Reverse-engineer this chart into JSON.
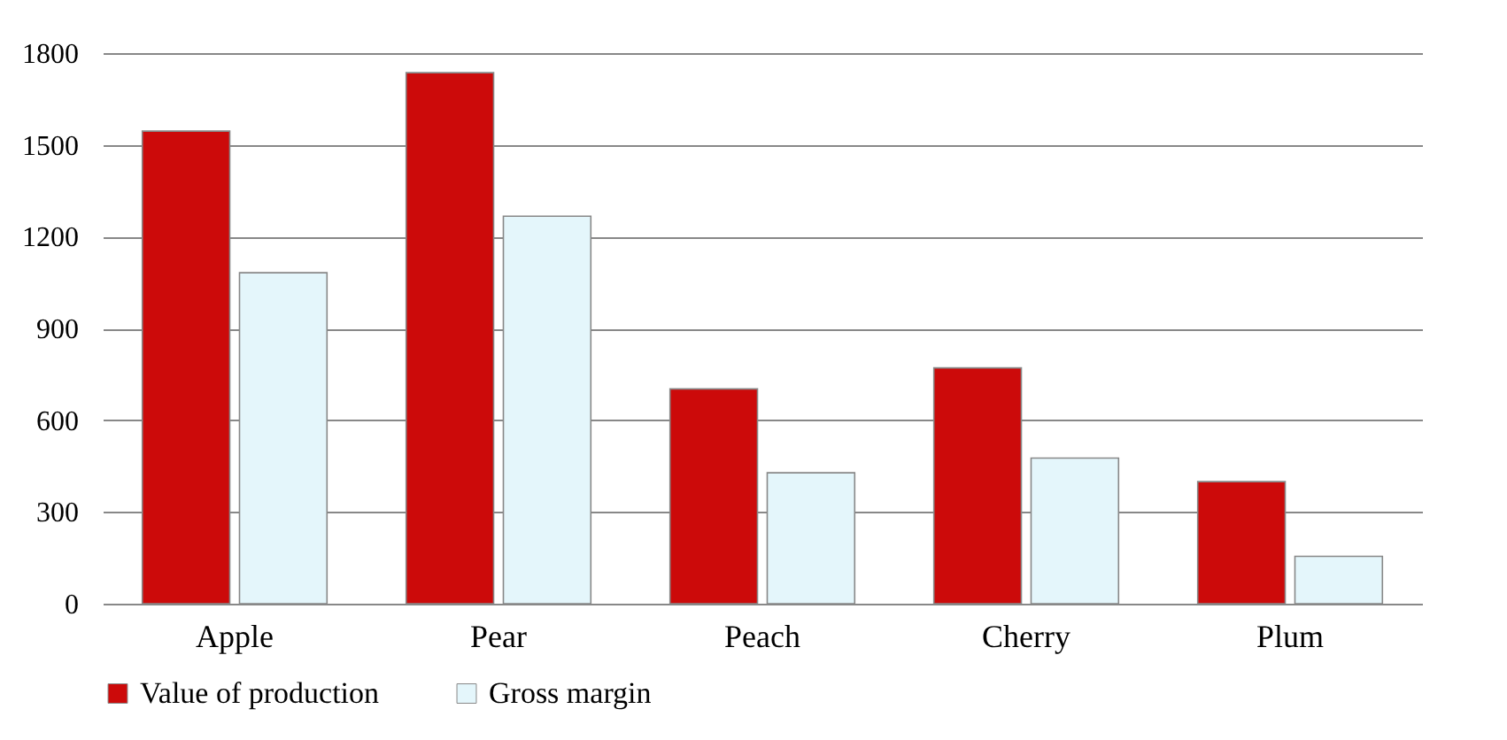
{
  "chart_data": {
    "type": "bar",
    "categories": [
      "Apple",
      "Pear",
      "Peach",
      "Cherry",
      "Plum"
    ],
    "series": [
      {
        "name": "Value of production",
        "color": "#cc0a0a",
        "values": [
          1545,
          1736,
          702,
          771,
          399
        ]
      },
      {
        "name": "Gross margin",
        "color": "#e4f6fb",
        "values": [
          1082,
          1267,
          428,
          476,
          155
        ]
      }
    ],
    "ylim": [
      0,
      1800
    ],
    "yticks": [
      0,
      300,
      600,
      900,
      1200,
      1500,
      1800
    ],
    "grid": "y",
    "legend": "bottom"
  }
}
